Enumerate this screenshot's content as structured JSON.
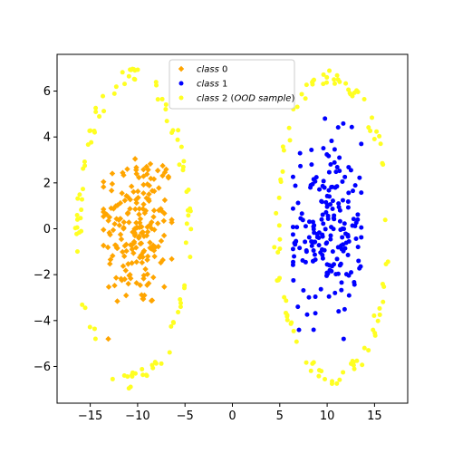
{
  "chart_data": {
    "type": "scatter",
    "xlim": [
      -18.5,
      18.5
    ],
    "ylim": [
      -7.6,
      7.6
    ],
    "xticks": [
      -15,
      -10,
      -5,
      0,
      5,
      10,
      15
    ],
    "yticks": [
      -6,
      -4,
      -2,
      0,
      2,
      4,
      6
    ],
    "legend_placement": "upper-center",
    "grid": false,
    "series": [
      {
        "name": "class 0",
        "label_parts": [
          {
            "text": "class",
            "italic": true
          },
          {
            "text": " 0",
            "italic": false
          }
        ],
        "color": "#ffa500",
        "marker": "diamond",
        "cx": -10,
        "cy": 0,
        "sx": 2.0,
        "sy": 1.8,
        "count": 200,
        "points": []
      },
      {
        "name": "class 1",
        "label_parts": [
          {
            "text": "class",
            "italic": true
          },
          {
            "text": " 1",
            "italic": false
          }
        ],
        "color": "#0000ff",
        "marker": "circle",
        "cx": 10,
        "cy": 0,
        "sx": 1.9,
        "sy": 1.9,
        "count": 200,
        "points": []
      },
      {
        "name": "class 2 (OOD sample)",
        "label_parts": [
          {
            "text": "class",
            "italic": true
          },
          {
            "text": " 2 (",
            "italic": false
          },
          {
            "text": "OOD sample",
            "italic": true
          },
          {
            "text": ")",
            "italic": false
          }
        ],
        "color": "#ffff22",
        "marker": "circle",
        "rings": [
          {
            "cx": -10.5,
            "cy": 0,
            "rx": 5.8,
            "ry": 6.6
          },
          {
            "cx": 10.5,
            "cy": 0,
            "rx": 5.8,
            "ry": 6.6
          }
        ],
        "count": 200,
        "points": []
      }
    ]
  }
}
